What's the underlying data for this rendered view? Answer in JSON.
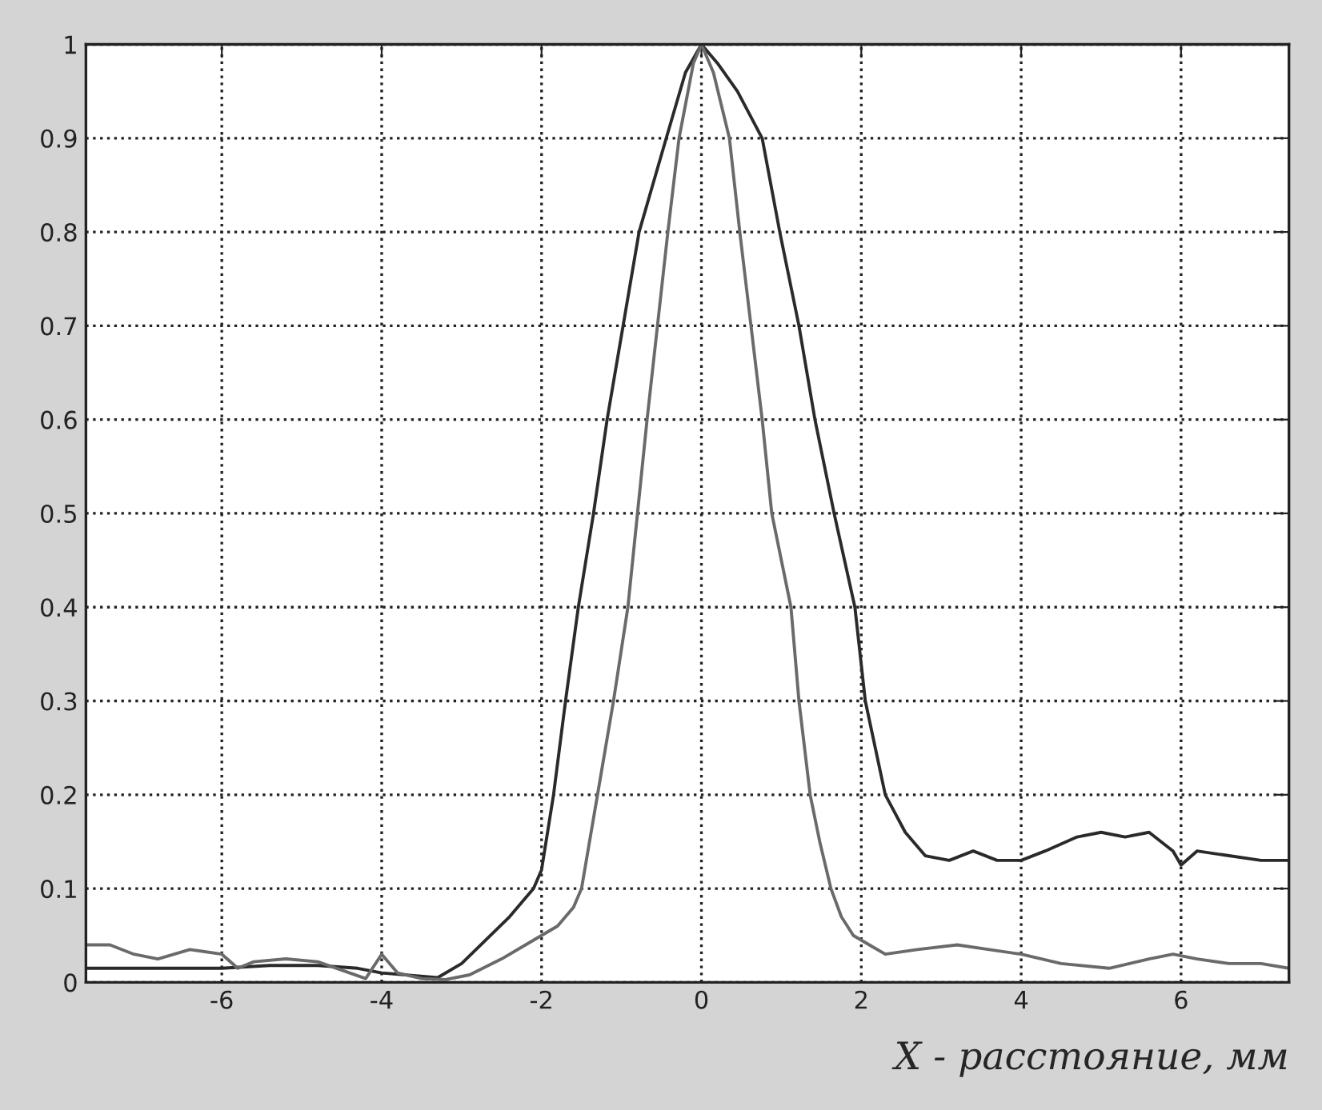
{
  "chart_data": {
    "type": "line",
    "xlabel": "X - расстояние, мм",
    "xlim": [
      -7.7,
      7.35
    ],
    "ylim": [
      0,
      1
    ],
    "xticks": [
      -6,
      -4,
      -2,
      0,
      2,
      4,
      6
    ],
    "yticks": [
      0,
      0.1,
      0.2,
      0.3,
      0.4,
      0.5,
      0.6,
      0.7,
      0.8,
      0.9,
      1
    ],
    "grid": true,
    "line_style": "solid",
    "marker": "none",
    "series": [
      {
        "color": "#2a2a2a",
        "x": [
          -7.7,
          -7.2,
          -6.6,
          -6.0,
          -5.4,
          -4.8,
          -4.3,
          -4.0,
          -3.7,
          -3.3,
          -3.0,
          -2.7,
          -2.4,
          -2.1,
          -2.0,
          -1.85,
          -1.7,
          -1.54,
          -1.35,
          -1.18,
          -0.98,
          -0.78,
          -0.44,
          -0.2,
          0.0,
          0.2,
          0.45,
          0.76,
          0.98,
          1.22,
          1.42,
          1.66,
          1.92,
          2.05,
          2.3,
          2.55,
          2.8,
          3.1,
          3.4,
          3.7,
          4.0,
          4.3,
          4.7,
          5.0,
          5.3,
          5.6,
          5.9,
          6.0,
          6.2,
          6.6,
          7.0,
          7.35
        ],
        "values": [
          0.015,
          0.015,
          0.015,
          0.015,
          0.018,
          0.018,
          0.015,
          0.01,
          0.008,
          0.005,
          0.02,
          0.045,
          0.07,
          0.1,
          0.12,
          0.2,
          0.3,
          0.4,
          0.5,
          0.6,
          0.7,
          0.8,
          0.9,
          0.97,
          1.0,
          0.98,
          0.95,
          0.9,
          0.8,
          0.7,
          0.6,
          0.5,
          0.4,
          0.3,
          0.2,
          0.16,
          0.135,
          0.13,
          0.14,
          0.13,
          0.13,
          0.14,
          0.155,
          0.16,
          0.155,
          0.16,
          0.14,
          0.125,
          0.14,
          0.135,
          0.13,
          0.13
        ]
      },
      {
        "color": "#6a6a6a",
        "x": [
          -7.7,
          -7.4,
          -7.1,
          -6.8,
          -6.4,
          -6.0,
          -5.8,
          -5.6,
          -5.2,
          -4.8,
          -4.4,
          -4.2,
          -4.0,
          -3.8,
          -3.5,
          -3.2,
          -2.9,
          -2.5,
          -2.2,
          -2.0,
          -1.8,
          -1.6,
          -1.5,
          -1.3,
          -1.1,
          -0.92,
          -0.8,
          -0.68,
          -0.55,
          -0.42,
          -0.28,
          -0.1,
          0.0,
          0.15,
          0.35,
          0.48,
          0.62,
          0.76,
          0.88,
          1.12,
          1.22,
          1.36,
          1.48,
          1.62,
          1.75,
          1.9,
          2.1,
          2.3,
          2.7,
          3.2,
          3.6,
          4.0,
          4.5,
          5.1,
          5.6,
          5.9,
          6.2,
          6.6,
          7.0,
          7.35
        ],
        "values": [
          0.04,
          0.04,
          0.03,
          0.025,
          0.035,
          0.03,
          0.015,
          0.022,
          0.025,
          0.022,
          0.01,
          0.004,
          0.03,
          0.01,
          0.004,
          0.003,
          0.008,
          0.025,
          0.04,
          0.05,
          0.06,
          0.08,
          0.1,
          0.2,
          0.3,
          0.4,
          0.5,
          0.6,
          0.7,
          0.8,
          0.9,
          0.98,
          1.0,
          0.97,
          0.9,
          0.8,
          0.7,
          0.6,
          0.5,
          0.4,
          0.3,
          0.2,
          0.15,
          0.1,
          0.07,
          0.05,
          0.04,
          0.03,
          0.035,
          0.04,
          0.035,
          0.03,
          0.02,
          0.015,
          0.025,
          0.03,
          0.025,
          0.02,
          0.02,
          0.015
        ]
      }
    ]
  }
}
